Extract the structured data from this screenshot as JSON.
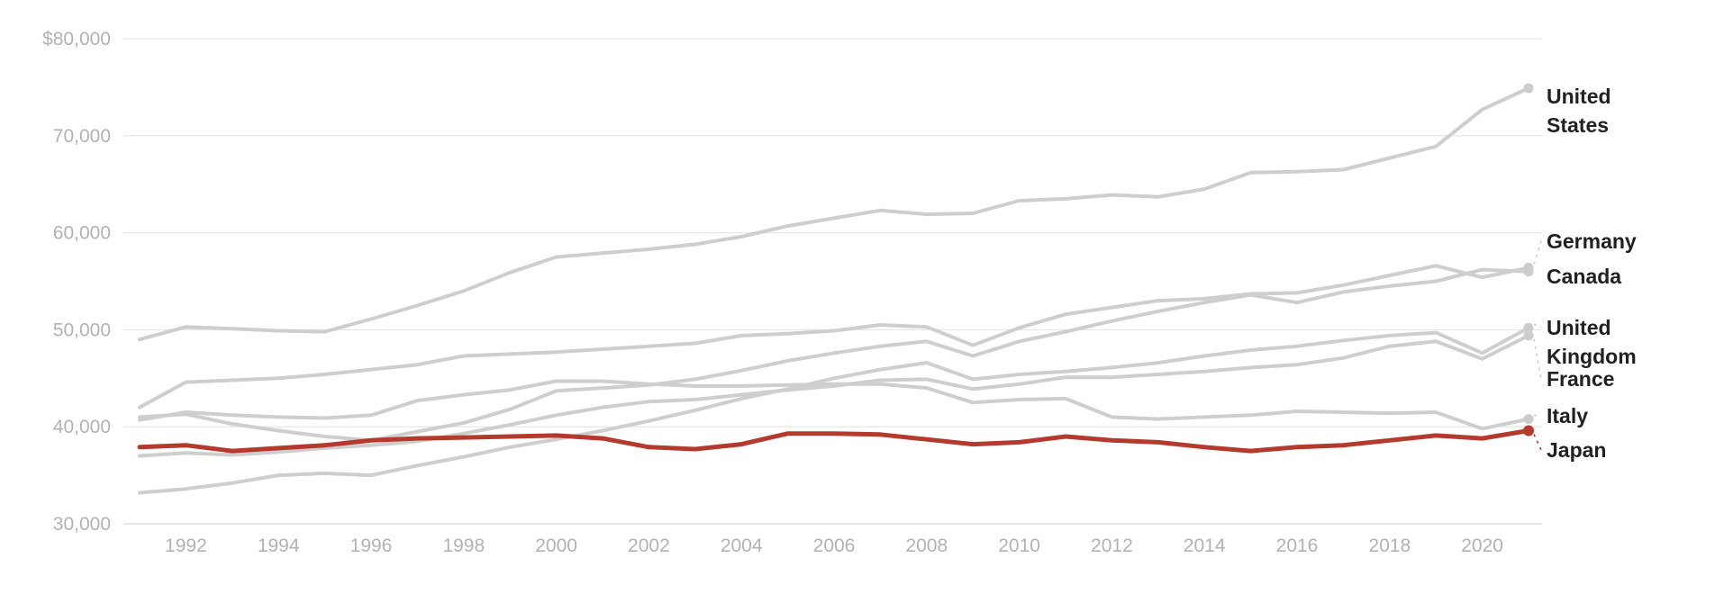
{
  "chart_data": {
    "type": "line",
    "title": "",
    "subtitle": "",
    "unit": "US dollars",
    "grid": true,
    "legend_position": "right-end-labels",
    "highlight_series": "Japan",
    "colors": {
      "background": "#ffffff",
      "gridline": "#e8e8e8",
      "baseline": "#d6d6d6",
      "line_gray": "#cecece",
      "dot_gray": "#cccccc",
      "highlight_red": "#b33a2d",
      "label_dark": "#212121",
      "axis_text": "#b2b2b2"
    },
    "x_axis": {
      "start_year": 1991,
      "end_year": 2021,
      "tick_labels": [
        "1992",
        "1994",
        "1996",
        "1998",
        "2000",
        "2002",
        "2004",
        "2006",
        "2008",
        "2010",
        "2012",
        "2014",
        "2016",
        "2018",
        "2020"
      ]
    },
    "y_axis": {
      "ylim": [
        30000,
        80000
      ],
      "ticks": [
        {
          "label": "$80,000",
          "value": 80000
        },
        {
          "label": "70,000",
          "value": 70000
        },
        {
          "label": "60,000",
          "value": 60000
        },
        {
          "label": "50,000",
          "value": 50000
        },
        {
          "label": "40,000",
          "value": 40000
        },
        {
          "label": "30,000",
          "value": 30000
        }
      ]
    },
    "series": [
      {
        "name": "United States",
        "label_lines": [
          "United",
          "States"
        ],
        "highlight": false,
        "end_dot": true,
        "leader": false,
        "values": [
          49000,
          50300,
          50100,
          49900,
          49800,
          51100,
          52500,
          54000,
          55900,
          57500,
          57900,
          58300,
          58800,
          59600,
          60700,
          61500,
          62300,
          61900,
          62000,
          63300,
          63500,
          63900,
          63700,
          64500,
          66200,
          66300,
          66500,
          67700,
          68900,
          72700,
          74900
        ]
      },
      {
        "name": "Germany",
        "label_lines": [
          "Germany"
        ],
        "highlight": false,
        "end_dot": true,
        "leader": true,
        "values": [
          42000,
          44600,
          44800,
          45000,
          45400,
          45900,
          46400,
          47300,
          47500,
          47700,
          48000,
          48300,
          48600,
          49400,
          49600,
          49900,
          50500,
          50300,
          48400,
          50200,
          51600,
          52300,
          53000,
          53200,
          53700,
          53800,
          54600,
          55600,
          56600,
          55400,
          56400
        ]
      },
      {
        "name": "Canada",
        "label_lines": [
          "Canada"
        ],
        "highlight": false,
        "end_dot": true,
        "leader": false,
        "values": [
          41000,
          41300,
          40300,
          39600,
          39000,
          38600,
          39500,
          40400,
          41800,
          43700,
          44000,
          44300,
          44900,
          45800,
          46800,
          47600,
          48300,
          48800,
          47300,
          48800,
          49800,
          50900,
          51900,
          52800,
          53600,
          52800,
          53900,
          54500,
          55000,
          56200,
          56000
        ]
      },
      {
        "name": "United Kingdom",
        "label_lines": [
          "United",
          "Kingdom"
        ],
        "highlight": false,
        "end_dot": true,
        "leader": true,
        "values": [
          33200,
          33600,
          34200,
          35000,
          35200,
          35000,
          36000,
          36900,
          37900,
          38700,
          39600,
          40600,
          41700,
          42900,
          43900,
          45000,
          45900,
          46600,
          44900,
          45400,
          45700,
          46100,
          46600,
          47300,
          47900,
          48300,
          48900,
          49400,
          49700,
          47600,
          50200
        ]
      },
      {
        "name": "France",
        "label_lines": [
          "France"
        ],
        "highlight": false,
        "end_dot": true,
        "leader": true,
        "values": [
          37000,
          37300,
          37100,
          37400,
          37800,
          38100,
          38500,
          39300,
          40200,
          41200,
          42000,
          42600,
          42800,
          43300,
          43800,
          44200,
          44800,
          44900,
          43900,
          44400,
          45100,
          45100,
          45400,
          45700,
          46100,
          46400,
          47100,
          48300,
          48800,
          47000,
          49400
        ]
      },
      {
        "name": "Italy",
        "label_lines": [
          "Italy"
        ],
        "highlight": false,
        "end_dot": true,
        "leader": true,
        "values": [
          40700,
          41500,
          41200,
          41000,
          40900,
          41200,
          42700,
          43300,
          43800,
          44700,
          44700,
          44400,
          44200,
          44200,
          44300,
          44400,
          44400,
          44000,
          42500,
          42800,
          42900,
          41000,
          40800,
          41000,
          41200,
          41600,
          41500,
          41400,
          41500,
          39800,
          40800
        ]
      },
      {
        "name": "Japan",
        "label_lines": [
          "Japan"
        ],
        "highlight": true,
        "end_dot": true,
        "leader": true,
        "values": [
          37900,
          38100,
          37500,
          37800,
          38100,
          38600,
          38800,
          38900,
          39000,
          39100,
          38800,
          37900,
          37700,
          38200,
          39300,
          39300,
          39200,
          38700,
          38200,
          38400,
          39000,
          38600,
          38400,
          37900,
          37500,
          37900,
          38100,
          38600,
          39100,
          38800,
          39600
        ]
      }
    ]
  }
}
